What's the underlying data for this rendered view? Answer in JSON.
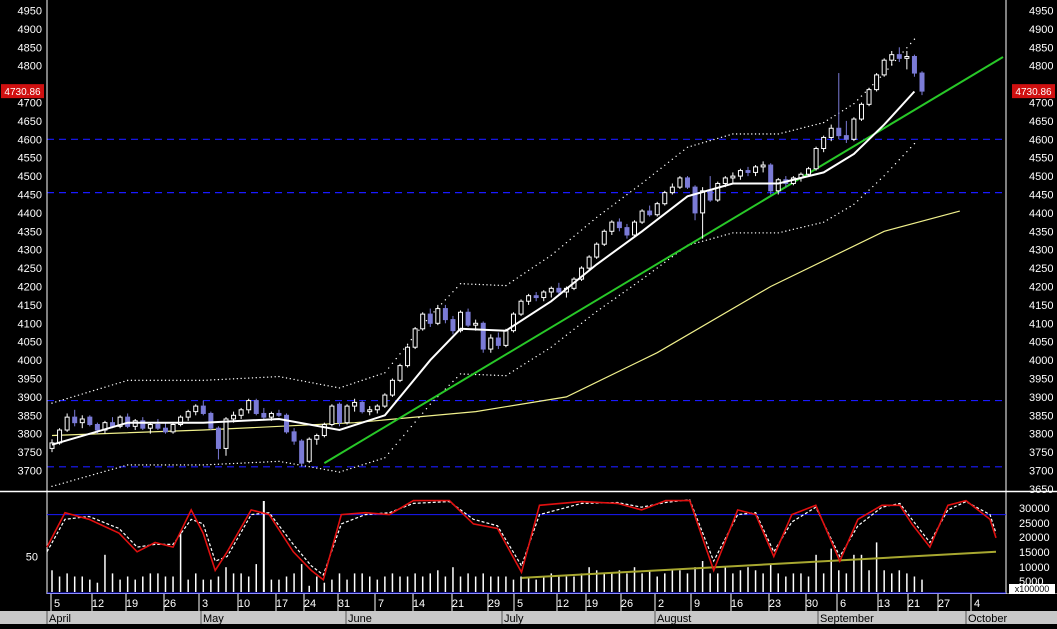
{
  "colors": {
    "background": "#000000",
    "axis_text": "#ffffff",
    "separator": "#ffffff",
    "grid_dashed": "#1a1aff",
    "candle_up": "#ffffff",
    "candle_down": "#7b7bd6",
    "ma_fast": "#ffffff",
    "ma_slow": "#f0f08c",
    "trendline": "#28c828",
    "envelope": "#ffffff",
    "stoch_k": "#e01010",
    "stoch_d": "#ffffff",
    "stoch_ref": "#1a1aff",
    "stoch_trend": "#a8a830",
    "volume": "#ffffff",
    "price_badge_bg": "#d01010",
    "price_badge_text": "#ffffff",
    "bottom_bar": "#c8c8c8"
  },
  "price_panel": {
    "current_price": "4730.86",
    "y_labels_left": [
      "4950",
      "4900",
      "4850",
      "4800",
      "4700",
      "4650",
      "4600",
      "4550",
      "4500",
      "4450",
      "4400",
      "4350",
      "4300",
      "4250",
      "4200",
      "4150",
      "4100",
      "4050",
      "4000",
      "3950",
      "3900",
      "3850",
      "3800",
      "3750",
      "3700"
    ],
    "y_labels_right": [
      "4950",
      "4900",
      "4850",
      "4800",
      "4700",
      "4650",
      "4600",
      "4550",
      "4500",
      "4450",
      "4400",
      "4350",
      "4300",
      "4250",
      "4200",
      "4150",
      "4100",
      "4050",
      "4000",
      "3950",
      "3900",
      "3850",
      "3800",
      "3750",
      "3700",
      "3650"
    ]
  },
  "lower_panel": {
    "left_label": "50",
    "right_labels": [
      "30000",
      "25000",
      "20000",
      "15000",
      "10000",
      "5000"
    ],
    "multiplier": "x100000"
  },
  "x_axis": {
    "day_ticks": [
      "5",
      "12",
      "19",
      "26",
      "3",
      "10",
      "17",
      "24",
      "31",
      "7",
      "14",
      "21",
      "29",
      "5",
      "12",
      "19",
      "26",
      "2",
      "9",
      "16",
      "23",
      "30",
      "6",
      "13",
      "21",
      "27",
      "4"
    ],
    "months": [
      "April",
      "May",
      "June",
      "July",
      "August",
      "September",
      "October"
    ]
  },
  "chart_data": {
    "type": "candlestick",
    "y_range": [
      3600,
      4960
    ],
    "horizontal_reference_levels": [
      4600,
      4455,
      3890,
      3710
    ],
    "stochastic_reference_level": 80,
    "envelope_dot_offset_pct": 3,
    "candles": [
      {
        "o": 3760,
        "h": 3785,
        "l": 3750,
        "c": 3775
      },
      {
        "o": 3775,
        "h": 3815,
        "l": 3770,
        "c": 3810
      },
      {
        "o": 3810,
        "h": 3855,
        "l": 3805,
        "c": 3845
      },
      {
        "o": 3845,
        "h": 3865,
        "l": 3820,
        "c": 3830
      },
      {
        "o": 3830,
        "h": 3850,
        "l": 3815,
        "c": 3840
      },
      {
        "o": 3845,
        "h": 3850,
        "l": 3820,
        "c": 3825
      },
      {
        "o": 3825,
        "h": 3830,
        "l": 3800,
        "c": 3810
      },
      {
        "o": 3810,
        "h": 3835,
        "l": 3800,
        "c": 3830
      },
      {
        "o": 3830,
        "h": 3845,
        "l": 3815,
        "c": 3820
      },
      {
        "o": 3820,
        "h": 3850,
        "l": 3815,
        "c": 3845
      },
      {
        "o": 3845,
        "h": 3855,
        "l": 3815,
        "c": 3820
      },
      {
        "o": 3820,
        "h": 3840,
        "l": 3810,
        "c": 3835
      },
      {
        "o": 3835,
        "h": 3845,
        "l": 3810,
        "c": 3815
      },
      {
        "o": 3815,
        "h": 3830,
        "l": 3800,
        "c": 3825
      },
      {
        "o": 3825,
        "h": 3840,
        "l": 3810,
        "c": 3815
      },
      {
        "o": 3815,
        "h": 3830,
        "l": 3800,
        "c": 3805
      },
      {
        "o": 3805,
        "h": 3830,
        "l": 3800,
        "c": 3825
      },
      {
        "o": 3825,
        "h": 3850,
        "l": 3820,
        "c": 3845
      },
      {
        "o": 3845,
        "h": 3865,
        "l": 3835,
        "c": 3860
      },
      {
        "o": 3860,
        "h": 3880,
        "l": 3850,
        "c": 3875
      },
      {
        "o": 3875,
        "h": 3890,
        "l": 3850,
        "c": 3855
      },
      {
        "o": 3855,
        "h": 3860,
        "l": 3810,
        "c": 3815
      },
      {
        "o": 3815,
        "h": 3820,
        "l": 3730,
        "c": 3760
      },
      {
        "o": 3760,
        "h": 3845,
        "l": 3740,
        "c": 3840
      },
      {
        "o": 3840,
        "h": 3860,
        "l": 3830,
        "c": 3850
      },
      {
        "o": 3850,
        "h": 3870,
        "l": 3840,
        "c": 3865
      },
      {
        "o": 3865,
        "h": 3895,
        "l": 3855,
        "c": 3890
      },
      {
        "o": 3890,
        "h": 3895,
        "l": 3850,
        "c": 3855
      },
      {
        "o": 3855,
        "h": 3870,
        "l": 3840,
        "c": 3845
      },
      {
        "o": 3845,
        "h": 3860,
        "l": 3835,
        "c": 3855
      },
      {
        "o": 3855,
        "h": 3865,
        "l": 3845,
        "c": 3850
      },
      {
        "o": 3850,
        "h": 3855,
        "l": 3800,
        "c": 3805
      },
      {
        "o": 3805,
        "h": 3815,
        "l": 3770,
        "c": 3780
      },
      {
        "o": 3780,
        "h": 3785,
        "l": 3710,
        "c": 3720
      },
      {
        "o": 3725,
        "h": 3790,
        "l": 3720,
        "c": 3785
      },
      {
        "o": 3785,
        "h": 3800,
        "l": 3770,
        "c": 3795
      },
      {
        "o": 3795,
        "h": 3830,
        "l": 3790,
        "c": 3825
      },
      {
        "o": 3825,
        "h": 3880,
        "l": 3820,
        "c": 3875
      },
      {
        "o": 3880,
        "h": 3885,
        "l": 3820,
        "c": 3830
      },
      {
        "o": 3830,
        "h": 3880,
        "l": 3825,
        "c": 3875
      },
      {
        "o": 3875,
        "h": 3895,
        "l": 3860,
        "c": 3885
      },
      {
        "o": 3885,
        "h": 3890,
        "l": 3855,
        "c": 3860
      },
      {
        "o": 3860,
        "h": 3875,
        "l": 3850,
        "c": 3865
      },
      {
        "o": 3865,
        "h": 3880,
        "l": 3855,
        "c": 3875
      },
      {
        "o": 3875,
        "h": 3910,
        "l": 3870,
        "c": 3905
      },
      {
        "o": 3905,
        "h": 3950,
        "l": 3900,
        "c": 3945
      },
      {
        "o": 3945,
        "h": 3990,
        "l": 3940,
        "c": 3985
      },
      {
        "o": 3985,
        "h": 4040,
        "l": 3980,
        "c": 4035
      },
      {
        "o": 4035,
        "h": 4090,
        "l": 4030,
        "c": 4085
      },
      {
        "o": 4085,
        "h": 4130,
        "l": 4080,
        "c": 4125
      },
      {
        "o": 4125,
        "h": 4140,
        "l": 4090,
        "c": 4100
      },
      {
        "o": 4100,
        "h": 4150,
        "l": 4095,
        "c": 4140
      },
      {
        "o": 4140,
        "h": 4150,
        "l": 4100,
        "c": 4110
      },
      {
        "o": 4110,
        "h": 4120,
        "l": 4070,
        "c": 4080
      },
      {
        "o": 4080,
        "h": 4135,
        "l": 4075,
        "c": 4130
      },
      {
        "o": 4130,
        "h": 4140,
        "l": 4090,
        "c": 4095
      },
      {
        "o": 4095,
        "h": 4110,
        "l": 4080,
        "c": 4100
      },
      {
        "o": 4100,
        "h": 4105,
        "l": 4020,
        "c": 4030
      },
      {
        "o": 4030,
        "h": 4070,
        "l": 4020,
        "c": 4060
      },
      {
        "o": 4060,
        "h": 4075,
        "l": 4030,
        "c": 4040
      },
      {
        "o": 4040,
        "h": 4085,
        "l": 4035,
        "c": 4080
      },
      {
        "o": 4080,
        "h": 4130,
        "l": 4075,
        "c": 4125
      },
      {
        "o": 4125,
        "h": 4165,
        "l": 4120,
        "c": 4160
      },
      {
        "o": 4160,
        "h": 4180,
        "l": 4150,
        "c": 4175
      },
      {
        "o": 4175,
        "h": 4185,
        "l": 4160,
        "c": 4170
      },
      {
        "o": 4170,
        "h": 4190,
        "l": 4160,
        "c": 4185
      },
      {
        "o": 4185,
        "h": 4200,
        "l": 4170,
        "c": 4195
      },
      {
        "o": 4195,
        "h": 4210,
        "l": 4180,
        "c": 4185
      },
      {
        "o": 4185,
        "h": 4200,
        "l": 4170,
        "c": 4195
      },
      {
        "o": 4195,
        "h": 4225,
        "l": 4190,
        "c": 4220
      },
      {
        "o": 4220,
        "h": 4255,
        "l": 4215,
        "c": 4250
      },
      {
        "o": 4250,
        "h": 4285,
        "l": 4245,
        "c": 4280
      },
      {
        "o": 4280,
        "h": 4320,
        "l": 4275,
        "c": 4315
      },
      {
        "o": 4315,
        "h": 4355,
        "l": 4310,
        "c": 4350
      },
      {
        "o": 4350,
        "h": 4380,
        "l": 4340,
        "c": 4375
      },
      {
        "o": 4375,
        "h": 4385,
        "l": 4350,
        "c": 4360
      },
      {
        "o": 4360,
        "h": 4370,
        "l": 4330,
        "c": 4340
      },
      {
        "o": 4340,
        "h": 4380,
        "l": 4335,
        "c": 4375
      },
      {
        "o": 4375,
        "h": 4410,
        "l": 4370,
        "c": 4405
      },
      {
        "o": 4405,
        "h": 4420,
        "l": 4390,
        "c": 4395
      },
      {
        "o": 4395,
        "h": 4430,
        "l": 4390,
        "c": 4425
      },
      {
        "o": 4425,
        "h": 4460,
        "l": 4420,
        "c": 4455
      },
      {
        "o": 4455,
        "h": 4480,
        "l": 4450,
        "c": 4470
      },
      {
        "o": 4470,
        "h": 4500,
        "l": 4465,
        "c": 4495
      },
      {
        "o": 4495,
        "h": 4500,
        "l": 4465,
        "c": 4470
      },
      {
        "o": 4470,
        "h": 4475,
        "l": 4380,
        "c": 4400
      },
      {
        "o": 4400,
        "h": 4470,
        "l": 4330,
        "c": 4460
      },
      {
        "o": 4460,
        "h": 4500,
        "l": 4430,
        "c": 4435
      },
      {
        "o": 4435,
        "h": 4485,
        "l": 4430,
        "c": 4480
      },
      {
        "o": 4480,
        "h": 4500,
        "l": 4470,
        "c": 4495
      },
      {
        "o": 4495,
        "h": 4510,
        "l": 4480,
        "c": 4500
      },
      {
        "o": 4500,
        "h": 4520,
        "l": 4490,
        "c": 4515
      },
      {
        "o": 4515,
        "h": 4525,
        "l": 4500,
        "c": 4510
      },
      {
        "o": 4510,
        "h": 4530,
        "l": 4500,
        "c": 4525
      },
      {
        "o": 4525,
        "h": 4540,
        "l": 4510,
        "c": 4530
      },
      {
        "o": 4530,
        "h": 4535,
        "l": 4450,
        "c": 4460
      },
      {
        "o": 4460,
        "h": 4495,
        "l": 4450,
        "c": 4490
      },
      {
        "o": 4490,
        "h": 4500,
        "l": 4470,
        "c": 4480
      },
      {
        "o": 4480,
        "h": 4500,
        "l": 4475,
        "c": 4495
      },
      {
        "o": 4495,
        "h": 4510,
        "l": 4485,
        "c": 4505
      },
      {
        "o": 4505,
        "h": 4525,
        "l": 4500,
        "c": 4520
      },
      {
        "o": 4520,
        "h": 4580,
        "l": 4515,
        "c": 4575
      },
      {
        "o": 4575,
        "h": 4610,
        "l": 4565,
        "c": 4605
      },
      {
        "o": 4605,
        "h": 4640,
        "l": 4595,
        "c": 4630
      },
      {
        "o": 4630,
        "h": 4780,
        "l": 4600,
        "c": 4610
      },
      {
        "o": 4610,
        "h": 4650,
        "l": 4590,
        "c": 4600
      },
      {
        "o": 4600,
        "h": 4660,
        "l": 4595,
        "c": 4655
      },
      {
        "o": 4655,
        "h": 4700,
        "l": 4650,
        "c": 4695
      },
      {
        "o": 4695,
        "h": 4740,
        "l": 4690,
        "c": 4735
      },
      {
        "o": 4735,
        "h": 4780,
        "l": 4730,
        "c": 4775
      },
      {
        "o": 4775,
        "h": 4820,
        "l": 4770,
        "c": 4815
      },
      {
        "o": 4815,
        "h": 4840,
        "l": 4800,
        "c": 4830
      },
      {
        "o": 4830,
        "h": 4850,
        "l": 4810,
        "c": 4820
      },
      {
        "o": 4820,
        "h": 4840,
        "l": 4790,
        "c": 4825
      },
      {
        "o": 4825,
        "h": 4830,
        "l": 4770,
        "c": 4780
      },
      {
        "o": 4780,
        "h": 4785,
        "l": 4720,
        "c": 4731
      }
    ],
    "ma_fast_line": [
      [
        0,
        3770
      ],
      [
        10,
        3830
      ],
      [
        20,
        3830
      ],
      [
        30,
        3840
      ],
      [
        38,
        3810
      ],
      [
        44,
        3850
      ],
      [
        50,
        4000
      ],
      [
        54,
        4085
      ],
      [
        60,
        4080
      ],
      [
        66,
        4160
      ],
      [
        72,
        4260
      ],
      [
        78,
        4350
      ],
      [
        84,
        4445
      ],
      [
        90,
        4480
      ],
      [
        96,
        4480
      ],
      [
        102,
        4510
      ],
      [
        106,
        4560
      ],
      [
        110,
        4640
      ],
      [
        114,
        4730
      ]
    ],
    "ma_slow_line": [
      [
        0,
        3795
      ],
      [
        20,
        3810
      ],
      [
        40,
        3830
      ],
      [
        56,
        3860
      ],
      [
        68,
        3900
      ],
      [
        80,
        4020
      ],
      [
        95,
        4200
      ],
      [
        110,
        4350
      ],
      [
        120,
        4405
      ]
    ],
    "trendline_main": [
      [
        36,
        3720
      ],
      [
        129,
        4800
      ]
    ],
    "stochastic_k": [
      [
        0,
        45
      ],
      [
        3,
        82
      ],
      [
        7,
        75
      ],
      [
        12,
        60
      ],
      [
        15,
        40
      ],
      [
        18,
        50
      ],
      [
        21,
        45
      ],
      [
        24,
        85
      ],
      [
        26,
        60
      ],
      [
        28,
        20
      ],
      [
        30,
        40
      ],
      [
        34,
        85
      ],
      [
        37,
        80
      ],
      [
        41,
        40
      ],
      [
        44,
        20
      ],
      [
        46,
        10
      ],
      [
        49,
        80
      ],
      [
        53,
        82
      ],
      [
        57,
        80
      ],
      [
        61,
        95
      ],
      [
        67,
        95
      ],
      [
        71,
        70
      ],
      [
        75,
        65
      ],
      [
        79,
        18
      ],
      [
        82,
        90
      ],
      [
        89,
        94
      ],
      [
        95,
        92
      ],
      [
        99,
        85
      ],
      [
        103,
        95
      ],
      [
        107,
        95
      ],
      [
        111,
        20
      ],
      [
        115,
        85
      ],
      [
        118,
        80
      ],
      [
        121,
        35
      ],
      [
        124,
        80
      ],
      [
        128,
        90
      ],
      [
        132,
        30
      ],
      [
        135,
        75
      ],
      [
        139,
        90
      ],
      [
        142,
        90
      ],
      [
        144,
        70
      ],
      [
        147,
        45
      ],
      [
        150,
        90
      ],
      [
        153,
        95
      ],
      [
        157,
        75
      ],
      [
        158,
        55
      ]
    ],
    "stochastic_d": [
      [
        0,
        40
      ],
      [
        3,
        75
      ],
      [
        7,
        78
      ],
      [
        12,
        65
      ],
      [
        15,
        45
      ],
      [
        18,
        48
      ],
      [
        21,
        48
      ],
      [
        24,
        75
      ],
      [
        26,
        70
      ],
      [
        28,
        30
      ],
      [
        30,
        35
      ],
      [
        34,
        80
      ],
      [
        37,
        82
      ],
      [
        41,
        48
      ],
      [
        44,
        25
      ],
      [
        46,
        15
      ],
      [
        49,
        70
      ],
      [
        53,
        80
      ],
      [
        57,
        82
      ],
      [
        61,
        92
      ],
      [
        67,
        94
      ],
      [
        71,
        75
      ],
      [
        75,
        68
      ],
      [
        79,
        25
      ],
      [
        82,
        80
      ],
      [
        89,
        92
      ],
      [
        95,
        93
      ],
      [
        99,
        88
      ],
      [
        103,
        93
      ],
      [
        107,
        96
      ],
      [
        111,
        30
      ],
      [
        115,
        80
      ],
      [
        118,
        82
      ],
      [
        121,
        40
      ],
      [
        124,
        72
      ],
      [
        128,
        88
      ],
      [
        132,
        35
      ],
      [
        135,
        68
      ],
      [
        139,
        88
      ],
      [
        142,
        92
      ],
      [
        144,
        75
      ],
      [
        147,
        50
      ],
      [
        150,
        85
      ],
      [
        153,
        94
      ],
      [
        157,
        80
      ],
      [
        158,
        60
      ]
    ],
    "stochastic_trend": [
      [
        79,
        12
      ],
      [
        158,
        40
      ]
    ],
    "volume_10000": [
      7,
      5,
      6,
      5,
      5,
      4,
      3,
      12,
      6,
      4,
      5,
      4,
      5,
      6,
      6,
      5,
      5,
      19,
      4,
      6,
      4,
      4,
      5,
      8,
      6,
      6,
      5,
      9,
      5,
      4,
      4,
      5,
      6,
      9,
      2,
      5,
      3,
      4,
      6,
      4,
      6,
      6,
      5,
      4,
      5,
      6,
      5,
      5,
      6,
      5,
      6,
      7,
      5,
      8,
      5,
      6,
      5,
      6,
      5,
      5,
      5,
      4,
      5,
      5,
      4,
      5,
      6,
      5,
      5,
      5,
      6,
      8,
      7,
      6,
      6,
      7,
      6,
      8,
      6,
      7,
      5,
      6,
      7,
      7,
      6,
      8,
      10,
      6,
      6,
      8,
      6,
      7,
      8,
      7,
      6,
      9,
      6,
      5,
      6,
      6,
      5,
      12,
      6,
      14,
      7,
      6,
      12,
      12,
      7,
      16,
      7,
      6,
      7,
      6,
      5,
      4
    ]
  }
}
